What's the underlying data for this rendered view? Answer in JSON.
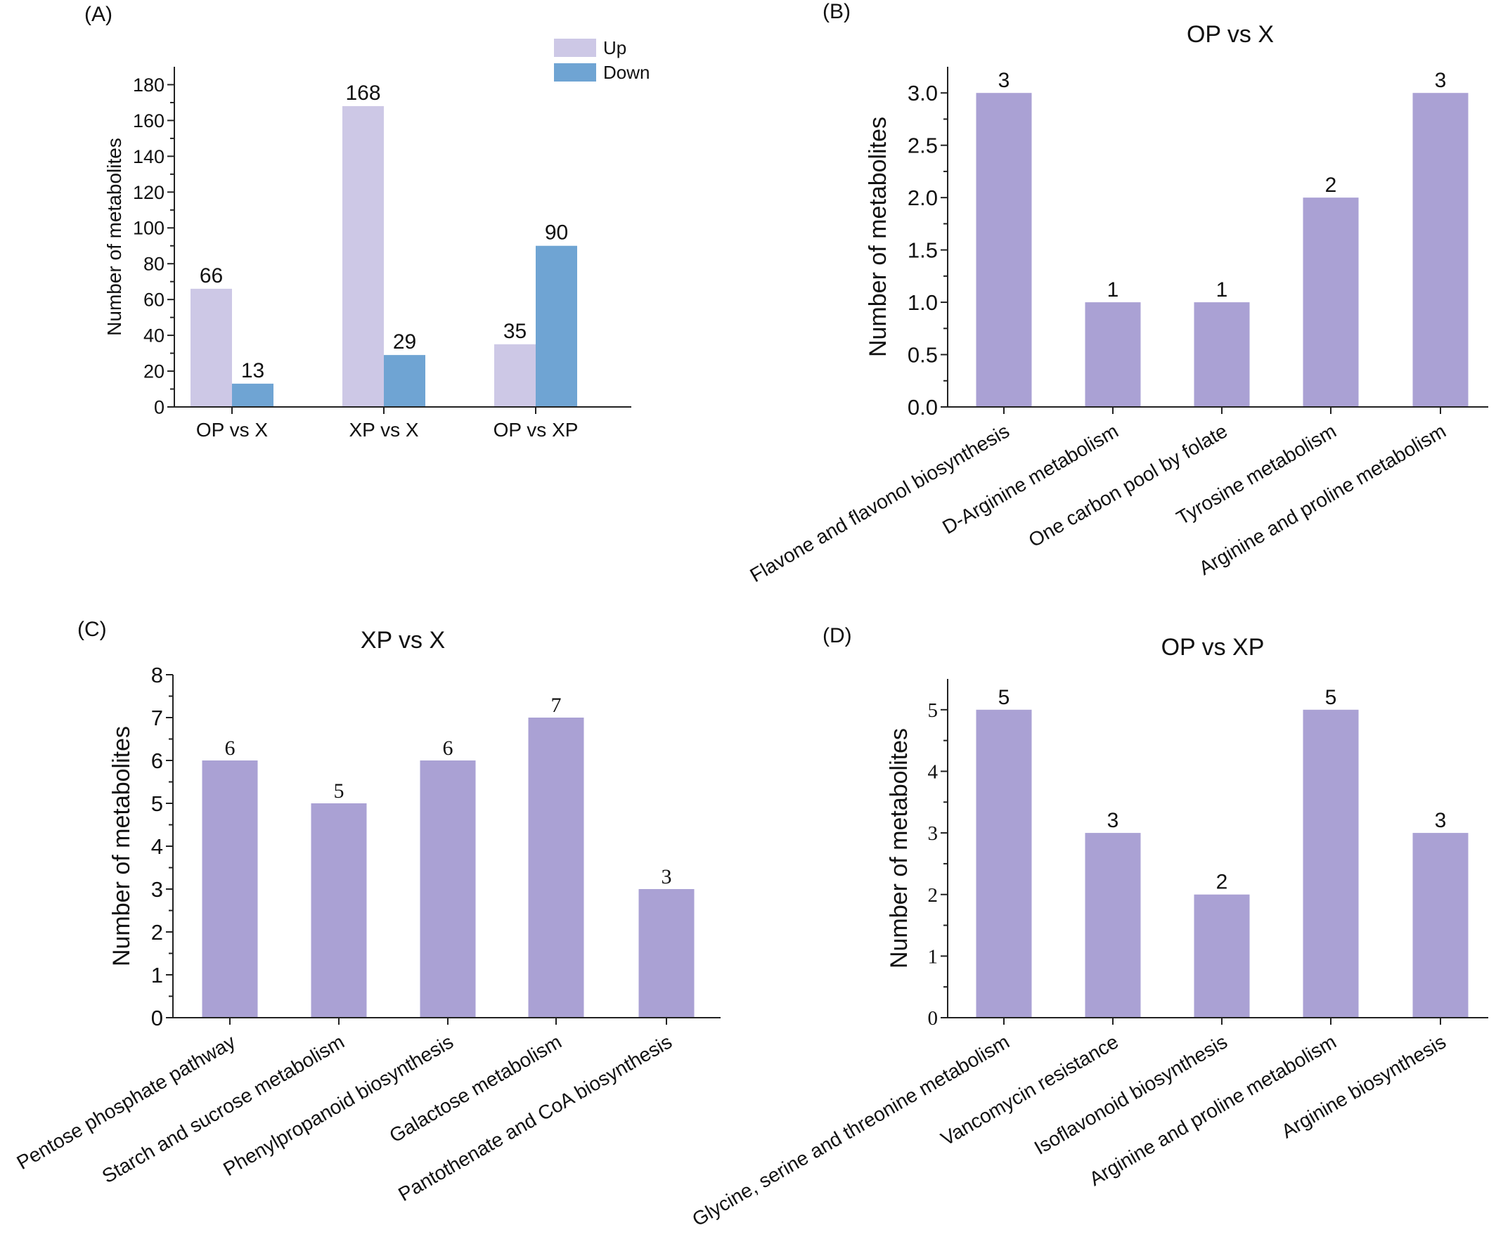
{
  "figure": {
    "panel_labels": [
      "(A)",
      "(B)",
      "(C)",
      "(D)"
    ]
  },
  "colors": {
    "up": "#cdc8e6",
    "down": "#6fa4d3",
    "pathway_bar": "#aaa1d4",
    "axis": "#222222"
  },
  "chart_data": [
    {
      "panel": "(A)",
      "type": "bar",
      "title": "",
      "xlabel": "",
      "ylabel": "Number of metabolites",
      "categories": [
        "OP vs X",
        "XP vs X",
        "OP vs XP"
      ],
      "series": [
        {
          "name": "Up",
          "values": [
            66,
            168,
            35
          ]
        },
        {
          "name": "Down",
          "values": [
            13,
            29,
            90
          ]
        }
      ],
      "ylim": [
        0,
        190
      ],
      "yticks": [
        0,
        20,
        40,
        60,
        80,
        100,
        120,
        140,
        160,
        180
      ],
      "legend": "top-right",
      "grid": false
    },
    {
      "panel": "(B)",
      "type": "bar",
      "title": "OP vs X",
      "xlabel": "",
      "ylabel": "Number of metabolites",
      "categories": [
        "Flavone and flavonol biosynthesis",
        "D-Arginine metabolism",
        "One carbon pool by folate",
        "Tyrosine metabolism",
        "Arginine and proline metabolism"
      ],
      "values": [
        3,
        1,
        1,
        2,
        3
      ],
      "ylim": [
        0,
        3.25
      ],
      "yticks": [
        "0.0",
        "0.5",
        "1.0",
        "1.5",
        "2.0",
        "2.5",
        "3.0"
      ],
      "grid": false
    },
    {
      "panel": "(C)",
      "type": "bar",
      "title": "XP vs X",
      "xlabel": "",
      "ylabel": "Number of metabolites",
      "categories": [
        "Pentose phosphate pathway",
        "Starch and sucrose metabolism",
        "Phenylpropanoid biosynthesis",
        "Galactose metabolism",
        "Pantothenate and CoA biosynthesis"
      ],
      "values": [
        6,
        5,
        6,
        7,
        3
      ],
      "ylim": [
        0,
        8
      ],
      "yticks": [
        "0",
        "1",
        "2",
        "3",
        "4",
        "5",
        "6",
        "7",
        "8"
      ],
      "grid": false
    },
    {
      "panel": "(D)",
      "type": "bar",
      "title": "OP vs XP",
      "xlabel": "",
      "ylabel": "Number of metabolites",
      "categories": [
        "Glycine, serine and threonine metabolism",
        "Vancomycin resistance",
        "Isoflavonoid biosynthesis",
        "Arginine and proline metabolism",
        "Arginine biosynthesis"
      ],
      "values": [
        5,
        3,
        2,
        5,
        3
      ],
      "ylim": [
        0,
        5.5
      ],
      "yticks": [
        "0",
        "1",
        "2",
        "3",
        "4",
        "5"
      ],
      "grid": false
    }
  ]
}
